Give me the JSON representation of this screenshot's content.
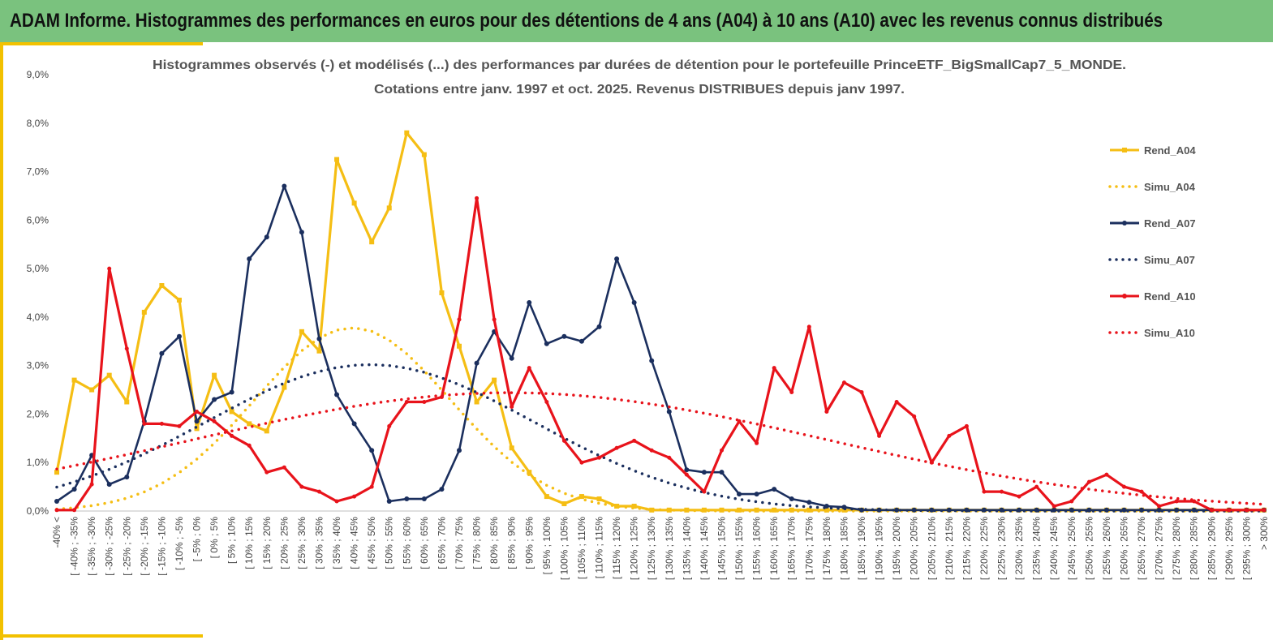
{
  "header": {
    "title": "ADAM Informe. Histogrammes des performances en euros pour des détentions de 4 ans (A04) à 10 ans (A10) avec les revenus connus distribués"
  },
  "colors": {
    "header_bg": "#7ac27e",
    "accent": "#f2c100",
    "A04": "#f5be14",
    "A07": "#1b2f5e",
    "A10": "#e8131b"
  },
  "chart_data": {
    "type": "line",
    "title": [
      "Histogrammes observés (-) et modélisés (...) des performances par durées de détention pour le portefeuille PrinceETF_BigSmallCap7_5_MONDE.",
      "Cotations entre janv. 1997 et oct. 2025. Revenus DISTRIBUES depuis janv 1997."
    ],
    "ylim": [
      0,
      9
    ],
    "yticks": [
      "0,0%",
      "1,0%",
      "2,0%",
      "3,0%",
      "4,0%",
      "5,0%",
      "6,0%",
      "7,0%",
      "8,0%",
      "9,0%"
    ],
    "categories": [
      "-40% <",
      "[ -40% ; -35%",
      "[ -35% ; -30%",
      "[ -30% ; -25%",
      "[ -25% ; -20%",
      "[ -20% ; -15%",
      "[ -15% ; -10%",
      "[ -10% ; -5%",
      "[ -5% ; 0%",
      "[ 0% ; 5%",
      "[ 5% ; 10%",
      "[ 10% ; 15%",
      "[ 15% ; 20%",
      "[ 20% ; 25%",
      "[ 25% ; 30%",
      "[ 30% ; 35%",
      "[ 35% ; 40%",
      "[ 40% ; 45%",
      "[ 45% ; 50%",
      "[ 50% ; 55%",
      "[ 55% ; 60%",
      "[ 60% ; 65%",
      "[ 65% ; 70%",
      "[ 70% ; 75%",
      "[ 75% ; 80%",
      "[ 80% ; 85%",
      "[ 85% ; 90%",
      "[ 90% ; 95%",
      "[ 95% ; 100%",
      "[ 100% ; 105%",
      "[ 105% ; 110%",
      "[ 110% ; 115%",
      "[ 115% ; 120%",
      "[ 120% ; 125%",
      "[ 125% ; 130%",
      "[ 130% ; 135%",
      "[ 135% ; 140%",
      "[ 140% ; 145%",
      "[ 145% ; 150%",
      "[ 150% ; 155%",
      "[ 155% ; 160%",
      "[ 160% ; 165%",
      "[ 165% ; 170%",
      "[ 170% ; 175%",
      "[ 175% ; 180%",
      "[ 180% ; 185%",
      "[ 185% ; 190%",
      "[ 190% ; 195%",
      "[ 195% ; 200%",
      "[ 200% ; 205%",
      "[ 205% ; 210%",
      "[ 210% ; 215%",
      "[ 215% ; 220%",
      "[ 220% ; 225%",
      "[ 225% ; 230%",
      "[ 230% ; 235%",
      "[ 235% ; 240%",
      "[ 240% ; 245%",
      "[ 245% ; 250%",
      "[ 250% ; 255%",
      "[ 255% ; 260%",
      "[ 260% ; 265%",
      "[ 265% ; 270%",
      "[ 270% ; 275%",
      "[ 275% ; 280%",
      "[ 280% ; 285%",
      "[ 285% ; 290%",
      "[ 290% ; 295%",
      "[ 295% ; 300%",
      "> 300%"
    ],
    "series": [
      {
        "name": "Rend_A04",
        "style": "solid",
        "values": [
          0.8,
          2.7,
          2.5,
          2.8,
          2.25,
          4.1,
          4.65,
          4.35,
          1.7,
          2.8,
          2.05,
          1.8,
          1.65,
          2.55,
          3.7,
          3.3,
          7.25,
          6.35,
          5.55,
          6.25,
          7.8,
          7.35,
          4.5,
          3.4,
          2.25,
          2.7,
          1.3,
          0.8,
          0.3,
          0.15,
          0.3,
          0.25,
          0.1,
          0.1,
          0.02,
          0.02,
          0.02,
          0.02,
          0.02,
          0.02,
          0.02,
          0.02,
          0.02,
          0.02,
          0.02,
          0.02,
          0.02,
          0.02,
          0.02,
          0.02,
          0.02,
          0.02,
          0.02,
          0.02,
          0.02,
          0.02,
          0.02,
          0.02,
          0.02,
          0.02,
          0.02,
          0.02,
          0.02,
          0.02,
          0.02,
          0.02,
          0.02,
          0.02,
          0.02,
          0.02
        ]
      },
      {
        "name": "Simu_A04",
        "style": "dotted",
        "mean": 42,
        "sd": 28,
        "peak": 3.78
      },
      {
        "name": "Rend_A07",
        "style": "solid",
        "values": [
          0.2,
          0.45,
          1.15,
          0.55,
          0.7,
          1.85,
          3.25,
          3.6,
          1.85,
          2.3,
          2.45,
          5.2,
          5.65,
          6.7,
          5.75,
          3.55,
          2.4,
          1.8,
          1.25,
          0.2,
          0.25,
          0.25,
          0.45,
          1.25,
          3.05,
          3.7,
          3.15,
          4.3,
          3.45,
          3.6,
          3.5,
          3.8,
          5.2,
          4.3,
          3.1,
          2.05,
          0.85,
          0.8,
          0.8,
          0.35,
          0.35,
          0.45,
          0.25,
          0.18,
          0.1,
          0.08,
          0.02,
          0.02,
          0.02,
          0.02,
          0.02,
          0.02,
          0.02,
          0.02,
          0.02,
          0.02,
          0.02,
          0.02,
          0.02,
          0.02,
          0.02,
          0.02,
          0.02,
          0.02,
          0.02,
          0.02,
          0.02,
          0.02,
          0.02,
          0.02
        ]
      },
      {
        "name": "Simu_A07",
        "style": "dotted",
        "mean": 47,
        "sd": 47,
        "peak": 3.02
      },
      {
        "name": "Rend_A10",
        "style": "solid",
        "values": [
          0.02,
          0.02,
          0.55,
          5.0,
          3.35,
          1.8,
          1.8,
          1.75,
          2.05,
          1.85,
          1.55,
          1.35,
          0.8,
          0.9,
          0.5,
          0.4,
          0.2,
          0.3,
          0.5,
          1.75,
          2.25,
          2.25,
          2.35,
          3.95,
          6.45,
          3.95,
          2.15,
          2.95,
          2.25,
          1.45,
          1.0,
          1.1,
          1.3,
          1.45,
          1.25,
          1.1,
          0.75,
          0.4,
          1.25,
          1.85,
          1.4,
          2.95,
          2.45,
          3.8,
          2.05,
          2.65,
          2.45,
          1.55,
          2.25,
          1.95,
          1.0,
          1.55,
          1.75,
          0.4,
          0.4,
          0.3,
          0.5,
          0.1,
          0.2,
          0.6,
          0.75,
          0.5,
          0.4,
          0.1,
          0.2,
          0.2,
          0.02,
          0.02,
          0.02,
          0.02
        ]
      },
      {
        "name": "Simu_A10",
        "style": "dotted",
        "mean": 87,
        "sd": 90,
        "peak": 2.44
      }
    ],
    "legend_position": "right"
  }
}
